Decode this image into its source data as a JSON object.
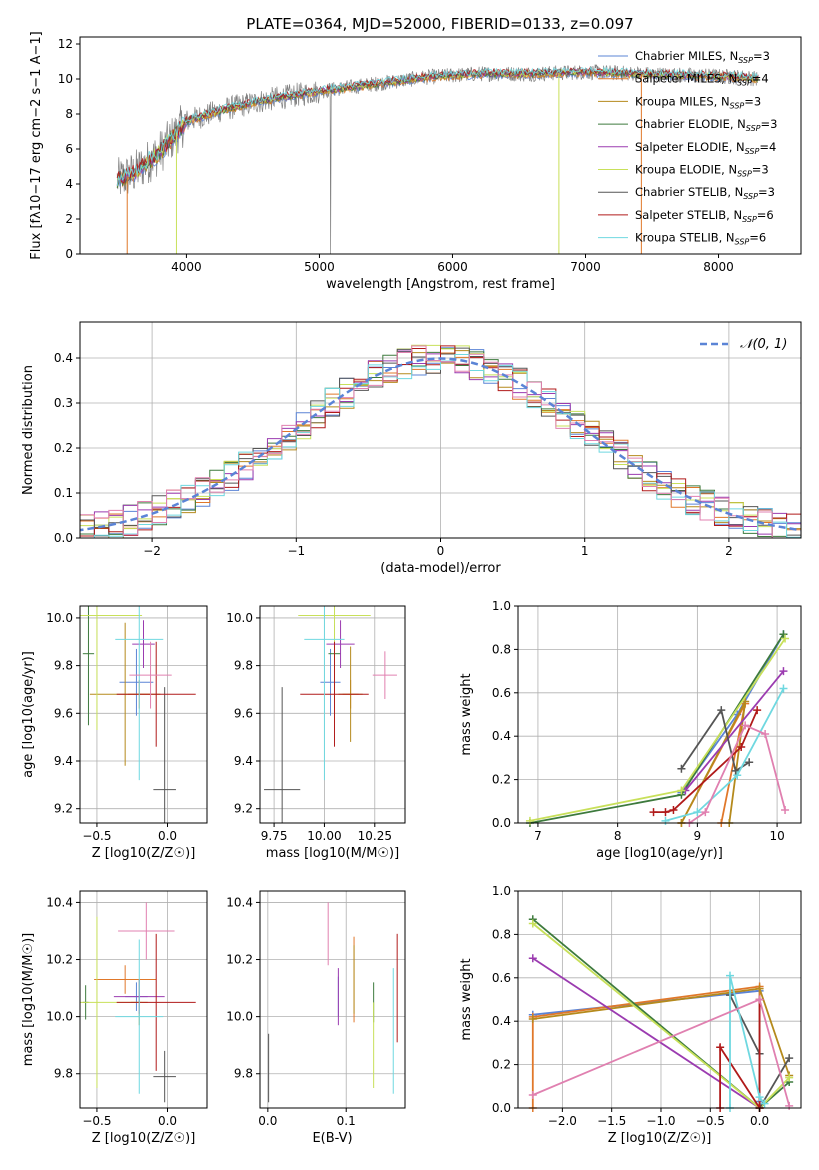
{
  "figure_title": "PLATE=0364, MJD=52000, FIBERID=0133, z=0.097",
  "models": [
    {
      "name": "Chabrier MILES",
      "nssp": "3",
      "color": "#5b84d6"
    },
    {
      "name": "Salpeter MILES",
      "nssp": "4",
      "color": "#e0782a"
    },
    {
      "name": "Kroupa MILES",
      "nssp": "3",
      "color": "#b58a1c"
    },
    {
      "name": "Chabrier ELODIE",
      "nssp": "3",
      "color": "#3d7a3d"
    },
    {
      "name": "Salpeter ELODIE",
      "nssp": "4",
      "color": "#9b3bb0"
    },
    {
      "name": "Kroupa ELODIE",
      "nssp": "3",
      "color": "#c8e05a"
    },
    {
      "name": "Chabrier STELIB",
      "nssp": "3",
      "color": "#555555"
    },
    {
      "name": "Salpeter STELIB",
      "nssp": "6",
      "color": "#b01a1a"
    },
    {
      "name": "Kroupa STELIB",
      "nssp": "6",
      "color": "#6fd8e0"
    }
  ],
  "extra_colors": {
    "pink": "#e080b0",
    "spectrum": "#808080"
  },
  "chart_data": [
    {
      "id": "spectrum",
      "type": "line",
      "xlabel": "wavelength [Angstrom, rest frame]",
      "ylabel": "Flux [fλ10−17 erg cm−2 s−1 A−1]",
      "xlim": [
        3200,
        8620
      ],
      "ylim": [
        0,
        12.4
      ],
      "xticks": [
        4000,
        5000,
        6000,
        7000,
        8000
      ],
      "yticks": [
        0,
        2,
        4,
        6,
        8,
        10,
        12
      ],
      "legend": "upper-right",
      "continuum": {
        "x": [
          3480,
          3600,
          3800,
          4000,
          4300,
          4600,
          5000,
          5400,
          5800,
          6200,
          6600,
          7000,
          7400,
          7800,
          8200,
          8300
        ],
        "y": [
          4.2,
          4.6,
          5.8,
          7.6,
          8.3,
          8.8,
          9.3,
          9.7,
          10.1,
          10.3,
          10.3,
          10.4,
          10.3,
          10.2,
          10.1,
          10.0
        ]
      }
    },
    {
      "id": "residual_hist",
      "type": "bar",
      "xlabel": "(data-model)/error",
      "ylabel": "Normed distribution",
      "xlim": [
        -2.5,
        2.5
      ],
      "ylim": [
        0,
        0.48
      ],
      "xticks": [
        -2,
        -1,
        0,
        1,
        2
      ],
      "yticks": [
        0.0,
        0.1,
        0.2,
        0.3,
        0.4
      ],
      "legend_label": "𝒩(0, 1)",
      "legend": "upper-right"
    },
    {
      "id": "age_vs_Z",
      "type": "scatter",
      "xlabel": "Z [log10(Z/Z☉)]",
      "ylabel": "age  [log10(age/yr)]",
      "xlim": [
        -0.62,
        0.28
      ],
      "ylim": [
        9.14,
        10.05
      ],
      "xticks": [
        -0.5,
        0.0
      ],
      "yticks": [
        9.2,
        9.4,
        9.6,
        9.8,
        10.0
      ],
      "points": [
        {
          "model": 0,
          "x": -0.22,
          "y": 9.73,
          "xerr": 0.12,
          "yerr": 0.14
        },
        {
          "model": 1,
          "x": -0.2,
          "y": 9.68,
          "xerr": 0.08,
          "yerr": 0.06
        },
        {
          "model": 2,
          "x": -0.3,
          "y": 9.68,
          "xerr": 0.25,
          "yerr": 0.3
        },
        {
          "model": 3,
          "x": -0.56,
          "y": 9.85,
          "xerr": 0.04,
          "yerr": 0.3
        },
        {
          "model": 4,
          "x": -0.17,
          "y": 9.89,
          "xerr": 0.08,
          "yerr": 0.1
        },
        {
          "model": 5,
          "x": -0.5,
          "y": 10.01,
          "xerr": 0.32,
          "yerr": 0.48
        },
        {
          "model": 6,
          "x": -0.02,
          "y": 9.28,
          "xerr": 0.08,
          "yerr": 0.43
        },
        {
          "model": 7,
          "x": -0.08,
          "y": 9.68,
          "xerr": 0.28,
          "yerr": 0.22
        },
        {
          "model": 8,
          "x": -0.2,
          "y": 9.91,
          "xerr": 0.17,
          "yerr": 0.59
        },
        {
          "model": "pink",
          "x": -0.12,
          "y": 9.76,
          "xerr": 0.15,
          "yerr": 0.14
        }
      ]
    },
    {
      "id": "age_vs_mass",
      "type": "scatter",
      "xlabel": "mass [log10(M/M☉)]",
      "ylabel": "",
      "xlim": [
        9.68,
        10.4
      ],
      "ylim": [
        9.14,
        10.05
      ],
      "xticks": [
        9.75,
        10.0,
        10.25
      ],
      "yticks": [
        9.2,
        9.4,
        9.6,
        9.8,
        10.0
      ],
      "points": [
        {
          "model": 0,
          "x": 10.03,
          "y": 9.73,
          "xerr": 0.05,
          "yerr": 0.14
        },
        {
          "model": 1,
          "x": 10.13,
          "y": 9.68,
          "xerr": 0.04,
          "yerr": 0.06
        },
        {
          "model": 2,
          "x": 10.13,
          "y": 9.68,
          "xerr": 0.06,
          "yerr": 0.2
        },
        {
          "model": 3,
          "x": 10.05,
          "y": 9.85,
          "xerr": 0.03,
          "yerr": 0.12
        },
        {
          "model": 4,
          "x": 10.08,
          "y": 9.89,
          "xerr": 0.07,
          "yerr": 0.1
        },
        {
          "model": 5,
          "x": 10.05,
          "y": 10.01,
          "xerr": 0.18,
          "yerr": 0.45
        },
        {
          "model": 6,
          "x": 9.79,
          "y": 9.28,
          "xerr": 0.09,
          "yerr": 0.43
        },
        {
          "model": 7,
          "x": 10.05,
          "y": 9.68,
          "xerr": 0.17,
          "yerr": 0.22
        },
        {
          "model": 8,
          "x": 10.0,
          "y": 9.91,
          "xerr": 0.1,
          "yerr": 0.59
        },
        {
          "model": "pink",
          "x": 10.3,
          "y": 9.76,
          "xerr": 0.06,
          "yerr": 0.1
        }
      ]
    },
    {
      "id": "weight_vs_age",
      "type": "line",
      "xlabel": "age  [log10(age/yr)]",
      "ylabel": "mass weight",
      "xlim": [
        6.75,
        10.3
      ],
      "ylim": [
        0,
        1.0
      ],
      "xticks": [
        7,
        8,
        9,
        10
      ],
      "yticks": [
        0.0,
        0.2,
        0.4,
        0.6,
        0.8,
        1.0
      ],
      "series": [
        {
          "model": 0,
          "x": [
            8.8,
            9.5,
            10.08
          ],
          "y": [
            0.14,
            0.5,
            0.87
          ]
        },
        {
          "model": 1,
          "x": [
            8.8,
            9.6,
            9.3
          ],
          "y": [
            0.0,
            0.55,
            0.0
          ]
        },
        {
          "model": 2,
          "x": [
            8.8,
            9.6,
            9.4
          ],
          "y": [
            0.0,
            0.56,
            0.0
          ]
        },
        {
          "model": 3,
          "x": [
            6.9,
            8.8,
            10.08
          ],
          "y": [
            0.0,
            0.13,
            0.87
          ]
        },
        {
          "model": 4,
          "x": [
            8.85,
            10.08
          ],
          "y": [
            0.15,
            0.7
          ]
        },
        {
          "model": 5,
          "x": [
            6.9,
            8.8,
            10.1
          ],
          "y": [
            0.01,
            0.15,
            0.85
          ]
        },
        {
          "model": 6,
          "x": [
            8.8,
            9.3,
            9.48,
            9.65
          ],
          "y": [
            0.25,
            0.52,
            0.24,
            0.28
          ]
        },
        {
          "model": 7,
          "x": [
            8.45,
            8.6,
            8.7,
            9.55,
            9.75
          ],
          "y": [
            0.05,
            0.05,
            0.06,
            0.35,
            0.52
          ]
        },
        {
          "model": 8,
          "x": [
            8.6,
            9.0,
            9.5,
            10.08
          ],
          "y": [
            0.01,
            0.05,
            0.22,
            0.62
          ]
        },
        {
          "model": "pink",
          "x": [
            8.9,
            9.1,
            9.6,
            9.85,
            10.1
          ],
          "y": [
            0.0,
            0.05,
            0.45,
            0.41,
            0.06
          ]
        }
      ]
    },
    {
      "id": "mass_vs_Z",
      "type": "scatter",
      "xlabel": "Z [log10(Z/Z☉)]",
      "ylabel": "mass [log10(M/M☉)]",
      "xlim": [
        -0.62,
        0.28
      ],
      "ylim": [
        9.68,
        10.44
      ],
      "xticks": [
        -0.5,
        0.0
      ],
      "yticks": [
        9.8,
        10.0,
        10.2,
        10.4
      ],
      "points": [
        {
          "model": 0,
          "x": -0.22,
          "y": 10.07,
          "xerr": 0.08,
          "yerr": 0.05
        },
        {
          "model": 1,
          "x": -0.3,
          "y": 10.13,
          "xerr": 0.22,
          "yerr": 0.05
        },
        {
          "model": 2,
          "x": -0.2,
          "y": 10.05,
          "xerr": 0.06,
          "yerr": 0.08
        },
        {
          "model": 3,
          "x": -0.58,
          "y": 10.05,
          "xerr": 0.02,
          "yerr": 0.06
        },
        {
          "model": 4,
          "x": -0.2,
          "y": 10.07,
          "xerr": 0.18,
          "yerr": 0.06
        },
        {
          "model": 5,
          "x": -0.5,
          "y": 10.05,
          "xerr": 0.32,
          "yerr": 0.3
        },
        {
          "model": 6,
          "x": -0.02,
          "y": 9.79,
          "xerr": 0.08,
          "yerr": 0.09
        },
        {
          "model": 7,
          "x": -0.08,
          "y": 10.05,
          "xerr": 0.28,
          "yerr": 0.24
        },
        {
          "model": 8,
          "x": -0.2,
          "y": 10.0,
          "xerr": 0.17,
          "yerr": 0.27
        },
        {
          "model": "pink",
          "x": -0.15,
          "y": 10.3,
          "xerr": 0.2,
          "yerr": 0.1
        }
      ]
    },
    {
      "id": "mass_vs_ebv",
      "type": "scatter",
      "xlabel": "E(B-V)",
      "ylabel": "",
      "xlim": [
        -0.01,
        0.175
      ],
      "ylim": [
        9.68,
        10.44
      ],
      "xticks": [
        0.0,
        0.1
      ],
      "yticks": [
        9.8,
        10.0,
        10.2,
        10.4
      ],
      "points": [
        {
          "model": 0,
          "x": 0.09,
          "y": 10.07,
          "xerr": 0,
          "yerr": 0.07
        },
        {
          "model": 1,
          "x": 0.11,
          "y": 10.13,
          "xerr": 0,
          "yerr": 0.15
        },
        {
          "model": 2,
          "x": 0.11,
          "y": 10.13,
          "xerr": 0,
          "yerr": 0.12
        },
        {
          "model": 3,
          "x": 0.135,
          "y": 10.05,
          "xerr": 0,
          "yerr": 0.07
        },
        {
          "model": 4,
          "x": 0.09,
          "y": 10.07,
          "xerr": 0,
          "yerr": 0.1
        },
        {
          "model": 5,
          "x": 0.135,
          "y": 9.9,
          "xerr": 0,
          "yerr": 0.15
        },
        {
          "model": 6,
          "x": 0.001,
          "y": 9.82,
          "xerr": 0,
          "yerr": 0.12
        },
        {
          "model": 7,
          "x": 0.165,
          "y": 10.1,
          "xerr": 0,
          "yerr": 0.19
        },
        {
          "model": 8,
          "x": 0.16,
          "y": 9.95,
          "xerr": 0,
          "yerr": 0.22
        },
        {
          "model": "pink",
          "x": 0.077,
          "y": 10.29,
          "xerr": 0,
          "yerr": 0.11
        }
      ]
    },
    {
      "id": "weight_vs_Z",
      "type": "line",
      "xlabel": "Z [log10(Z/Z☉)]",
      "ylabel": "mass weight",
      "xlim": [
        -2.45,
        0.42
      ],
      "ylim": [
        0,
        1.0
      ],
      "xticks": [
        -2.0,
        -1.5,
        -1.0,
        -0.5,
        0.0
      ],
      "yticks": [
        0.0,
        0.2,
        0.4,
        0.6,
        0.8,
        1.0
      ],
      "series": [
        {
          "model": 0,
          "x": [
            -2.3,
            0.0,
            0.0
          ],
          "y": [
            0.43,
            0.54,
            0.03
          ]
        },
        {
          "model": 1,
          "x": [
            -2.3,
            -2.3,
            0.0,
            0.0
          ],
          "y": [
            0.0,
            0.42,
            0.56,
            0.0
          ]
        },
        {
          "model": 2,
          "x": [
            -2.3,
            0.0,
            0.3
          ],
          "y": [
            0.41,
            0.55,
            0.15
          ]
        },
        {
          "model": 3,
          "x": [
            -2.3,
            0.0,
            0.3
          ],
          "y": [
            0.87,
            0.0,
            0.12
          ]
        },
        {
          "model": 4,
          "x": [
            -2.3,
            0.0
          ],
          "y": [
            0.69,
            0.0
          ]
        },
        {
          "model": 5,
          "x": [
            -2.3,
            0.0,
            0.3
          ],
          "y": [
            0.85,
            0.0,
            0.14
          ]
        },
        {
          "model": 6,
          "x": [
            -0.3,
            0.0,
            0.0,
            0.3
          ],
          "y": [
            0.52,
            0.25,
            0.0,
            0.23
          ]
        },
        {
          "model": 7,
          "x": [
            -0.4,
            -0.4,
            0.0,
            0.0
          ],
          "y": [
            0.0,
            0.28,
            0.0,
            0.5
          ]
        },
        {
          "model": 8,
          "x": [
            -0.3,
            -0.3,
            0.0,
            0.05
          ],
          "y": [
            0.0,
            0.61,
            0.05,
            0.02
          ]
        },
        {
          "model": "pink",
          "x": [
            -2.3,
            0.0,
            0.3
          ],
          "y": [
            0.06,
            0.5,
            0.01
          ]
        }
      ]
    }
  ]
}
